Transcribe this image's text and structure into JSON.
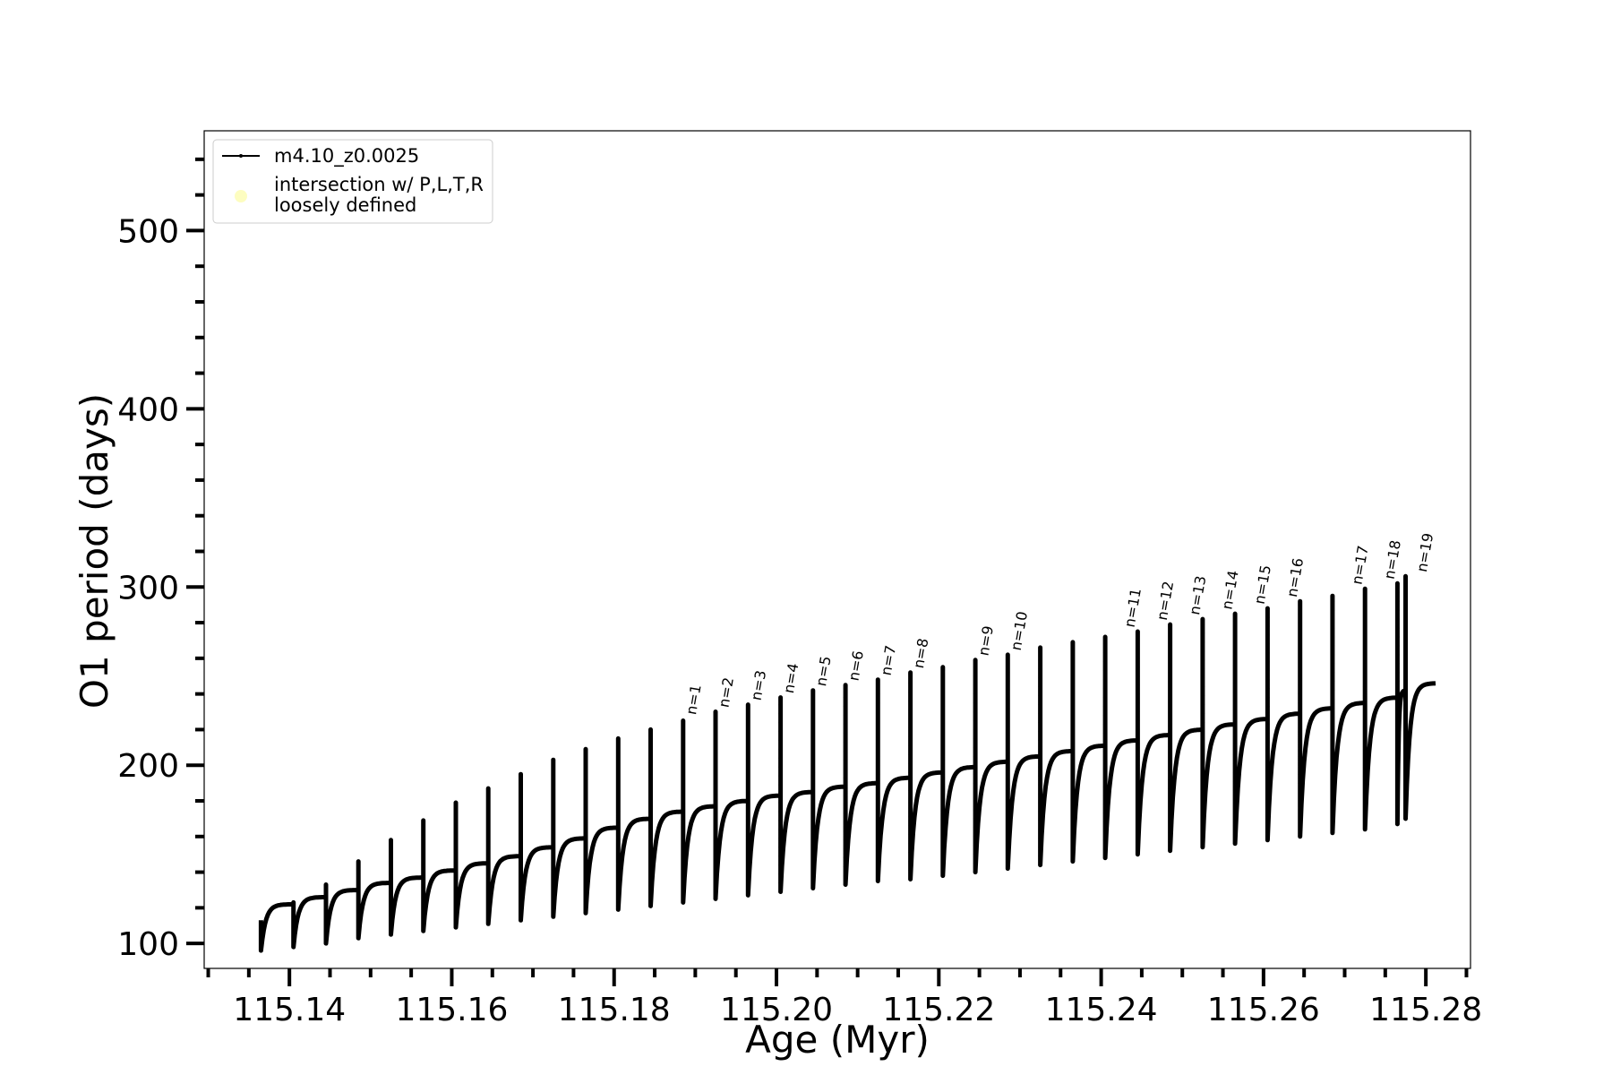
{
  "chart_data": {
    "type": "line",
    "xlabel": "Age (Myr)",
    "ylabel": "O1 period (days)",
    "xlim": [
      115.1295,
      115.2855
    ],
    "ylim": [
      86,
      556
    ],
    "x_ticks": [
      115.14,
      115.16,
      115.18,
      115.2,
      115.22,
      115.24,
      115.26,
      115.28
    ],
    "x_tick_labels": [
      "115.14",
      "115.16",
      "115.18",
      "115.20",
      "115.22",
      "115.24",
      "115.26",
      "115.28"
    ],
    "x_minor_step": 0.005,
    "y_ticks": [
      100,
      200,
      300,
      400,
      500
    ],
    "y_tick_labels": [
      "100",
      "200",
      "300",
      "400",
      "500"
    ],
    "y_minor_step": 20,
    "grid": false,
    "legend": {
      "placement": "top-left",
      "entries": [
        {
          "label": "m4.10_z0.0025",
          "marker": "line",
          "color": "#000000"
        },
        {
          "label_lines": [
            "intersection w/ P,L,T,R",
            "loosely defined"
          ],
          "marker": "dot",
          "color": "#fdfdc0"
        }
      ]
    },
    "series": [
      {
        "name": "m4.10_z0.0025",
        "color": "#000000",
        "cycles": [
          {
            "start": 115.1365,
            "end": 115.1405,
            "min": 96,
            "plateau": 122,
            "spike": 113
          },
          {
            "start": 115.1405,
            "end": 115.1445,
            "min": 98,
            "plateau": 126,
            "spike": 123
          },
          {
            "start": 115.1445,
            "end": 115.1485,
            "min": 100,
            "plateau": 130,
            "spike": 133
          },
          {
            "start": 115.1485,
            "end": 115.1525,
            "min": 103,
            "plateau": 134,
            "spike": 146
          },
          {
            "start": 115.1525,
            "end": 115.1565,
            "min": 105,
            "plateau": 137,
            "spike": 158
          },
          {
            "start": 115.1565,
            "end": 115.1605,
            "min": 107,
            "plateau": 141,
            "spike": 169
          },
          {
            "start": 115.1605,
            "end": 115.1645,
            "min": 109,
            "plateau": 145,
            "spike": 179
          },
          {
            "start": 115.1645,
            "end": 115.1685,
            "min": 111,
            "plateau": 149,
            "spike": 187
          },
          {
            "start": 115.1685,
            "end": 115.1725,
            "min": 113,
            "plateau": 154,
            "spike": 195
          },
          {
            "start": 115.1725,
            "end": 115.1765,
            "min": 115,
            "plateau": 159,
            "spike": 203
          },
          {
            "start": 115.1765,
            "end": 115.1805,
            "min": 117,
            "plateau": 165,
            "spike": 209
          },
          {
            "start": 115.1805,
            "end": 115.1845,
            "min": 119,
            "plateau": 170,
            "spike": 215
          },
          {
            "start": 115.1845,
            "end": 115.1885,
            "min": 121,
            "plateau": 174,
            "spike": 220
          },
          {
            "start": 115.1885,
            "end": 115.1925,
            "min": 123,
            "plateau": 177,
            "spike": 225
          },
          {
            "start": 115.1925,
            "end": 115.1965,
            "min": 125,
            "plateau": 180,
            "spike": 230
          },
          {
            "start": 115.1965,
            "end": 115.2005,
            "min": 127,
            "plateau": 183,
            "spike": 234
          },
          {
            "start": 115.2005,
            "end": 115.2045,
            "min": 129,
            "plateau": 185,
            "spike": 238
          },
          {
            "start": 115.2045,
            "end": 115.2085,
            "min": 131,
            "plateau": 188,
            "spike": 242
          },
          {
            "start": 115.2085,
            "end": 115.2125,
            "min": 133,
            "plateau": 190,
            "spike": 245
          },
          {
            "start": 115.2125,
            "end": 115.2165,
            "min": 135,
            "plateau": 193,
            "spike": 248
          },
          {
            "start": 115.2165,
            "end": 115.2205,
            "min": 136,
            "plateau": 196,
            "spike": 252
          },
          {
            "start": 115.2205,
            "end": 115.2245,
            "min": 138,
            "plateau": 199,
            "spike": 255
          },
          {
            "start": 115.2245,
            "end": 115.2285,
            "min": 140,
            "plateau": 202,
            "spike": 259
          },
          {
            "start": 115.2285,
            "end": 115.2325,
            "min": 142,
            "plateau": 205,
            "spike": 262
          },
          {
            "start": 115.2325,
            "end": 115.2365,
            "min": 144,
            "plateau": 208,
            "spike": 266
          },
          {
            "start": 115.2365,
            "end": 115.2405,
            "min": 146,
            "plateau": 211,
            "spike": 269
          },
          {
            "start": 115.2405,
            "end": 115.2445,
            "min": 148,
            "plateau": 214,
            "spike": 272
          },
          {
            "start": 115.2445,
            "end": 115.2485,
            "min": 150,
            "plateau": 217,
            "spike": 275
          },
          {
            "start": 115.2485,
            "end": 115.2525,
            "min": 152,
            "plateau": 220,
            "spike": 279
          },
          {
            "start": 115.2525,
            "end": 115.2565,
            "min": 154,
            "plateau": 223,
            "spike": 282
          },
          {
            "start": 115.2565,
            "end": 115.2605,
            "min": 156,
            "plateau": 226,
            "spike": 285
          },
          {
            "start": 115.2605,
            "end": 115.2645,
            "min": 158,
            "plateau": 229,
            "spike": 288
          },
          {
            "start": 115.2645,
            "end": 115.2685,
            "min": 160,
            "plateau": 232,
            "spike": 292
          },
          {
            "start": 115.2685,
            "end": 115.2725,
            "min": 162,
            "plateau": 235,
            "spike": 295
          },
          {
            "start": 115.2725,
            "end": 115.2765,
            "min": 164,
            "plateau": 238,
            "spike": 299
          },
          {
            "start": 115.2765,
            "end": 115.2775,
            "min": 167,
            "plateau": 242,
            "spike": 302
          }
        ],
        "final": {
          "end": 115.2775,
          "min": 170,
          "plateau": 246,
          "spike": 306
        }
      }
    ],
    "annotations": [
      {
        "text": "n=1",
        "x": 115.1905,
        "y": 226
      },
      {
        "text": "n=2",
        "x": 115.1945,
        "y": 230
      },
      {
        "text": "n=3",
        "x": 115.1985,
        "y": 234
      },
      {
        "text": "n=4",
        "x": 115.2025,
        "y": 238
      },
      {
        "text": "n=5",
        "x": 115.2065,
        "y": 242
      },
      {
        "text": "n=6",
        "x": 115.2105,
        "y": 245
      },
      {
        "text": "n=7",
        "x": 115.2145,
        "y": 248
      },
      {
        "text": "n=8",
        "x": 115.2185,
        "y": 252
      },
      {
        "text": "n=9",
        "x": 115.2265,
        "y": 259
      },
      {
        "text": "n=10",
        "x": 115.2305,
        "y": 262
      },
      {
        "text": "n=11",
        "x": 115.2445,
        "y": 275
      },
      {
        "text": "n=12",
        "x": 115.2485,
        "y": 279
      },
      {
        "text": "n=13",
        "x": 115.2525,
        "y": 282
      },
      {
        "text": "n=14",
        "x": 115.2565,
        "y": 285
      },
      {
        "text": "n=15",
        "x": 115.2605,
        "y": 288
      },
      {
        "text": "n=16",
        "x": 115.2645,
        "y": 292
      },
      {
        "text": "n=17",
        "x": 115.2725,
        "y": 299
      },
      {
        "text": "n=18",
        "x": 115.2765,
        "y": 302
      },
      {
        "text": "n=19",
        "x": 115.2805,
        "y": 306
      }
    ]
  }
}
